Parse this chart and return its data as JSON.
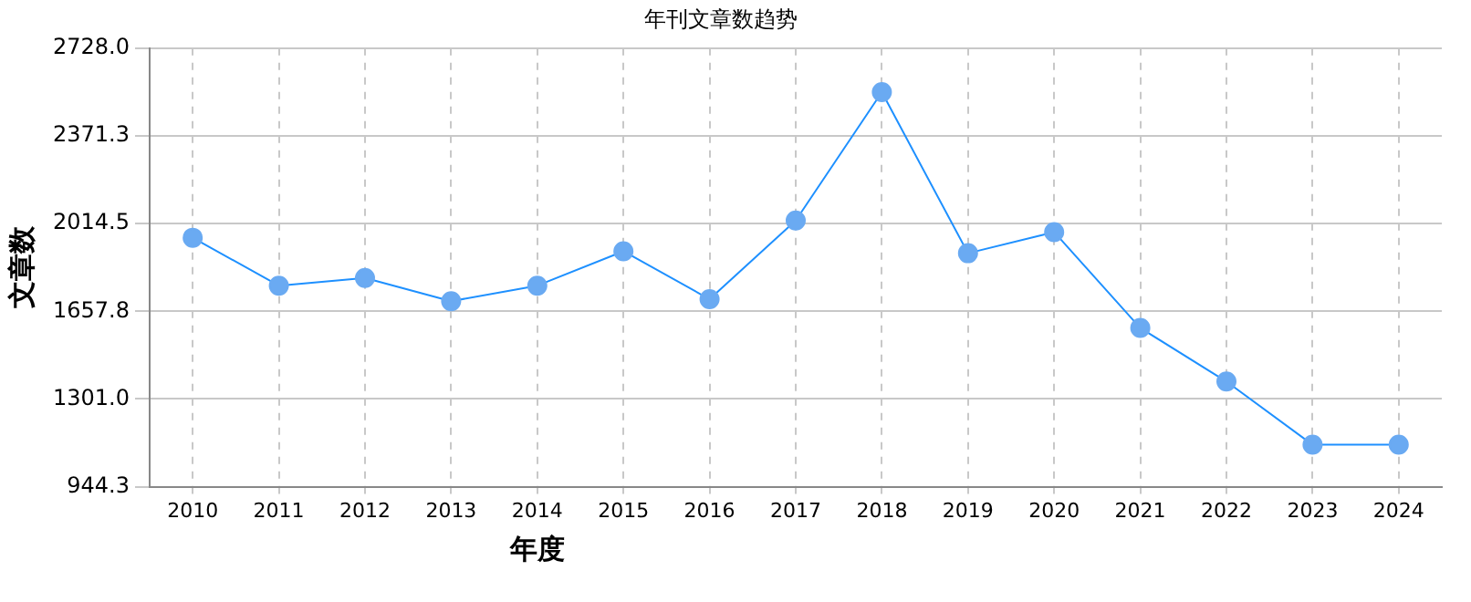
{
  "chart_data": {
    "type": "line",
    "title": "年刊文章数趋势",
    "xlabel": "年度",
    "ylabel": "文章数",
    "categories": [
      "2010",
      "2011",
      "2012",
      "2013",
      "2014",
      "2015",
      "2016",
      "2017",
      "2018",
      "2019",
      "2020",
      "2021",
      "2022",
      "2023",
      "2024"
    ],
    "series": [
      {
        "color": "#1e90ff",
        "values": [
          1957,
          1762,
          1793,
          1699,
          1762,
          1902,
          1707,
          2027,
          2549,
          1894,
          1980,
          1590,
          1372,
          1115,
          1115
        ]
      }
    ],
    "ylim": [
      944.3,
      2728.0
    ],
    "yticks": [
      {
        "value": 944.3,
        "label": "944.3"
      },
      {
        "value": 1301.0,
        "label": "1301.0"
      },
      {
        "value": 1657.8,
        "label": "1657.8"
      },
      {
        "value": 2014.5,
        "label": "2014.5"
      },
      {
        "value": 2371.3,
        "label": "2371.3"
      },
      {
        "value": 2728.0,
        "label": "2728.0"
      }
    ],
    "grid": true,
    "legend": false,
    "marker": "circle",
    "line_style": "solid"
  }
}
